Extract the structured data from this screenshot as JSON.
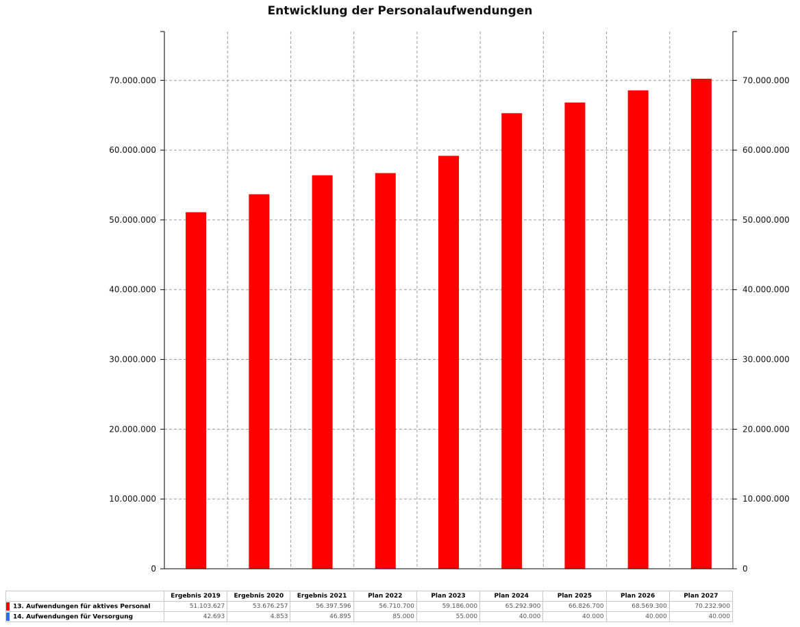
{
  "title": "Entwicklung der Personalaufwendungen",
  "colors": {
    "series1": "#ff0000",
    "series2": "#3366ff",
    "grid": "#9a9a9a",
    "axis": "#000000"
  },
  "chart_data": {
    "type": "bar",
    "title": "Entwicklung der Personalaufwendungen",
    "categories": [
      "Ergebnis 2019",
      "Ergebnis 2020",
      "Ergebnis 2021",
      "Plan 2022",
      "Plan 2023",
      "Plan 2024",
      "Plan 2025",
      "Plan 2026",
      "Plan 2027"
    ],
    "series": [
      {
        "name": "13. Aufwendungen für aktives Personal",
        "color": "#ff0000",
        "values": [
          51103627,
          53676257,
          56397596,
          56710700,
          59186000,
          65292900,
          66826700,
          68569300,
          70232900
        ],
        "labels": [
          "51.103.627",
          "53.676.257",
          "56.397.596",
          "56.710.700",
          "59.186.000",
          "65.292.900",
          "66.826.700",
          "68.569.300",
          "70.232.900"
        ]
      },
      {
        "name": "14. Aufwendungen für Versorgung",
        "color": "#3366ff",
        "values": [
          42693,
          4853,
          46895,
          85000,
          55000,
          40000,
          40000,
          40000,
          40000
        ],
        "labels": [
          "42.693",
          "4.853",
          "46.895",
          "85.000",
          "55.000",
          "40.000",
          "40.000",
          "40.000",
          "40.000"
        ]
      }
    ],
    "ylim": [
      0,
      77000000
    ],
    "yticks": [
      0,
      10000000,
      20000000,
      30000000,
      40000000,
      50000000,
      60000000,
      70000000
    ],
    "ytick_labels": [
      "0",
      "10.000.000",
      "20.000.000",
      "30.000.000",
      "40.000.000",
      "50.000.000",
      "60.000.000",
      "70.000.000"
    ],
    "grid": true,
    "legend": "table-below"
  }
}
